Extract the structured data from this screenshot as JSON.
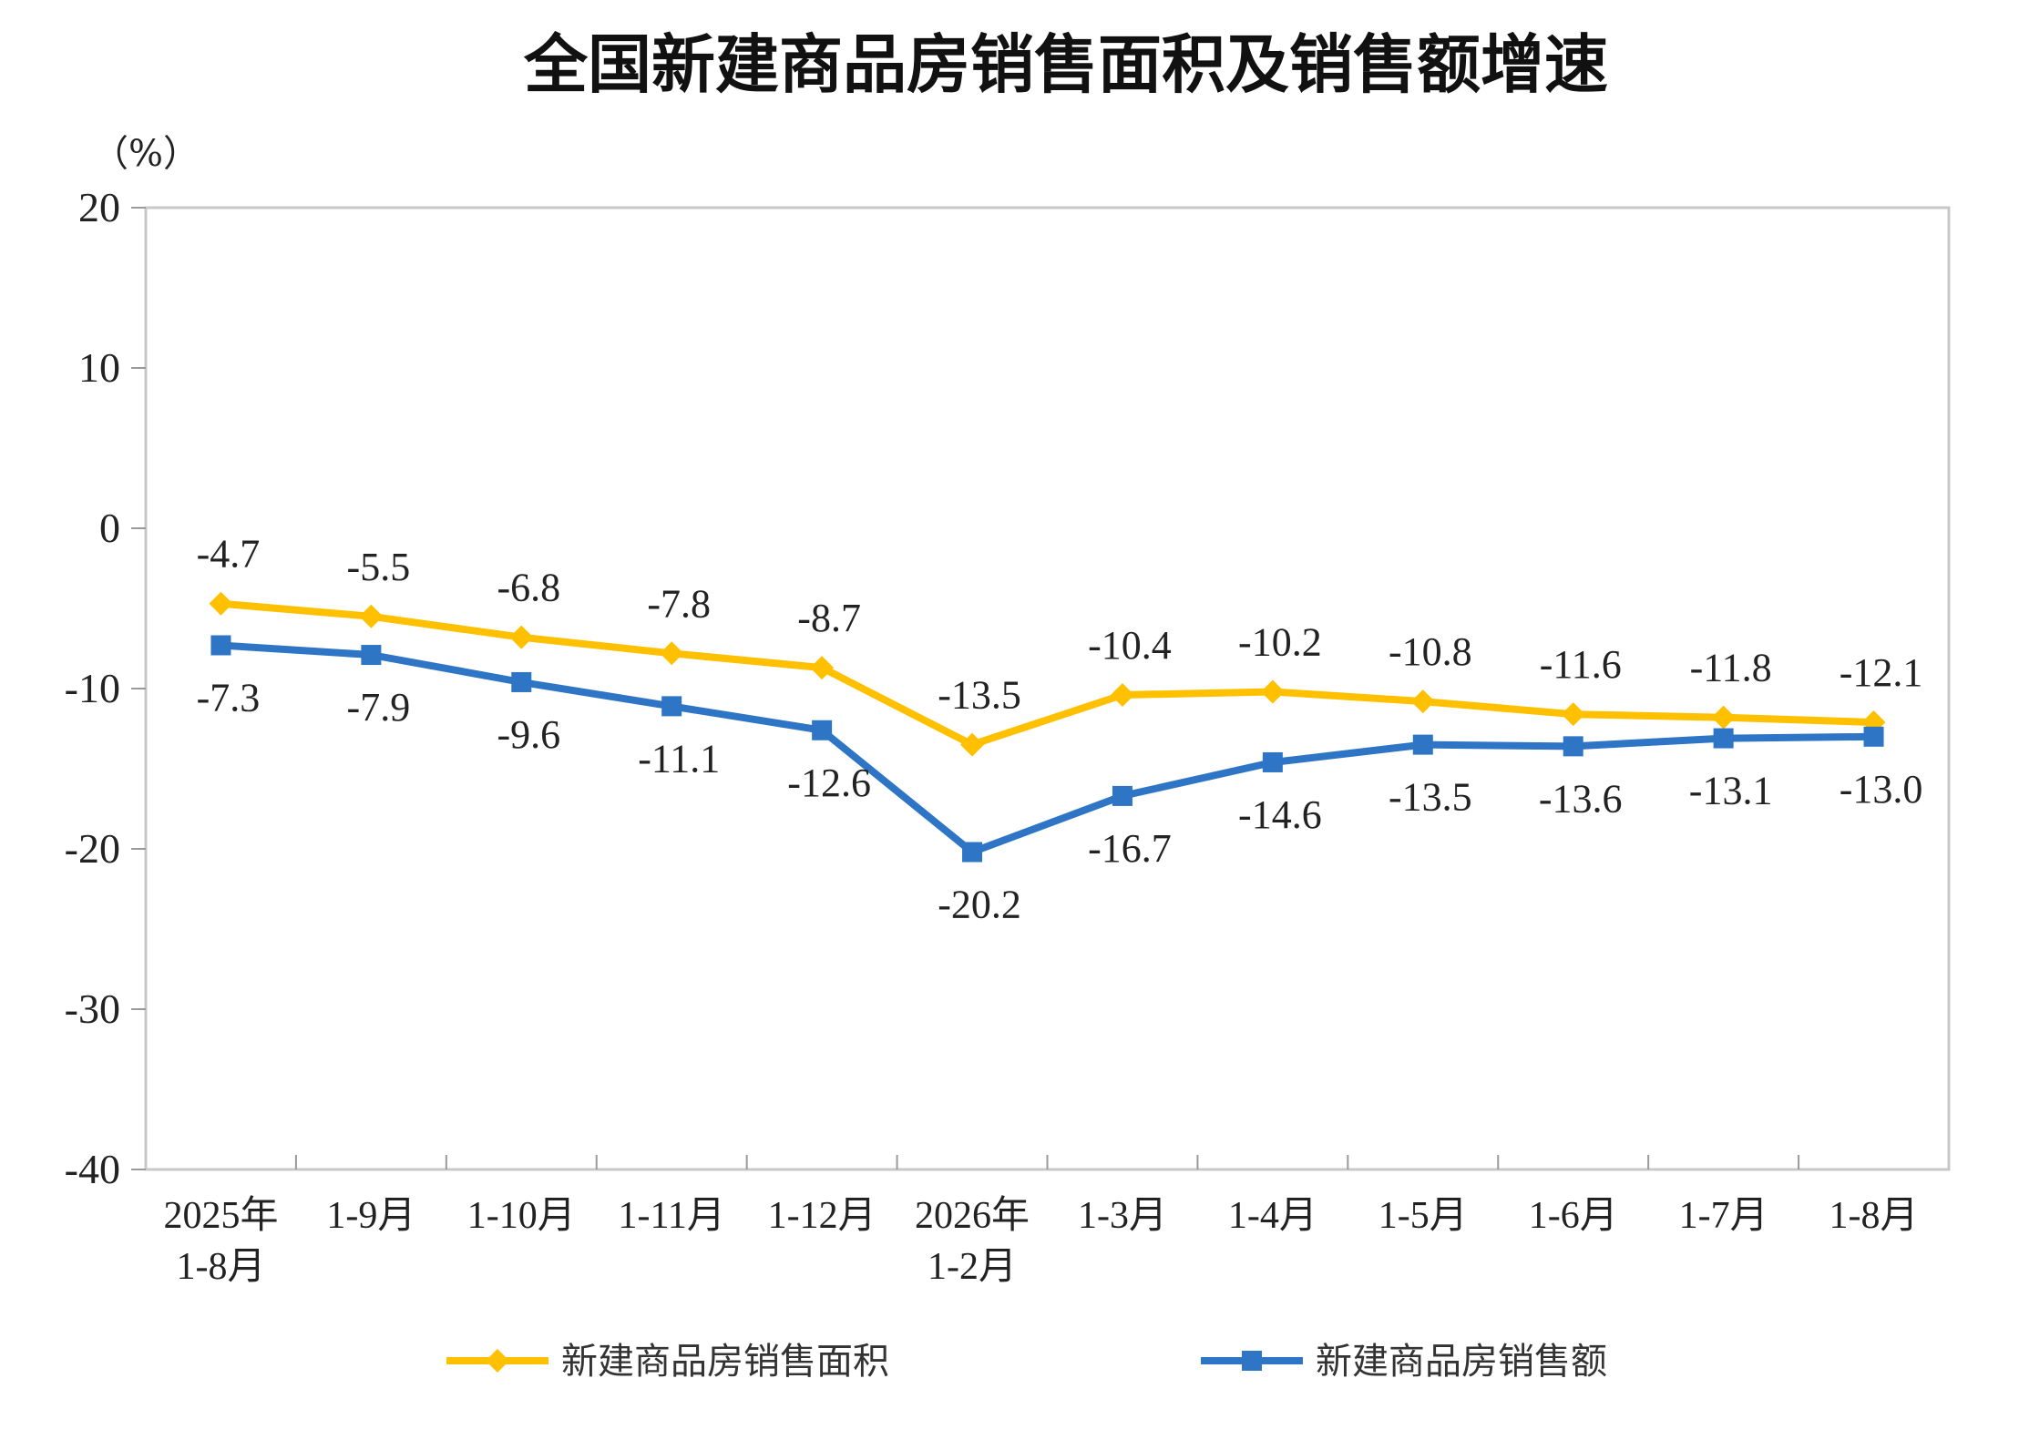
{
  "chart_data": {
    "type": "line",
    "title": "全国新建商品房销售面积及销售额增速",
    "unit_label": "（%）",
    "ylim": [
      -40,
      20
    ],
    "yticks": [
      20,
      10,
      0,
      -10,
      -20,
      -30,
      -40
    ],
    "categories": [
      [
        "2025年",
        "1-8月"
      ],
      [
        "1-9月"
      ],
      [
        "1-10月"
      ],
      [
        "1-11月"
      ],
      [
        "1-12月"
      ],
      [
        "2026年",
        "1-2月"
      ],
      [
        "1-3月"
      ],
      [
        "1-4月"
      ],
      [
        "1-5月"
      ],
      [
        "1-6月"
      ],
      [
        "1-7月"
      ],
      [
        "1-8月"
      ]
    ],
    "series": [
      {
        "name": "新建商品房销售面积",
        "color": "#FFC000",
        "marker": "diamond",
        "values": [
          -4.7,
          -5.5,
          -6.8,
          -7.8,
          -8.7,
          -13.5,
          -10.4,
          -10.2,
          -10.8,
          -11.6,
          -11.8,
          -12.1
        ],
        "labels": [
          "-4.7",
          "-5.5",
          "-6.8",
          "-7.8",
          "-8.7",
          "-13.5",
          "-10.4",
          "-10.2",
          "-10.8",
          "-11.6",
          "-11.8",
          "-12.1"
        ],
        "label_position": "above"
      },
      {
        "name": "新建商品房销售额",
        "color": "#2E75C6",
        "marker": "square",
        "values": [
          -7.3,
          -7.9,
          -9.6,
          -11.1,
          -12.6,
          -20.2,
          -16.7,
          -14.6,
          -13.5,
          -13.6,
          -13.1,
          -13.0
        ],
        "labels": [
          "-7.3",
          "-7.9",
          "-9.6",
          "-11.1",
          "-12.6",
          "-20.2",
          "-16.7",
          "-14.6",
          "-13.5",
          "-13.6",
          "-13.1",
          "-13.0"
        ],
        "label_position": "below"
      }
    ],
    "legend_position": "bottom",
    "grid": false
  }
}
